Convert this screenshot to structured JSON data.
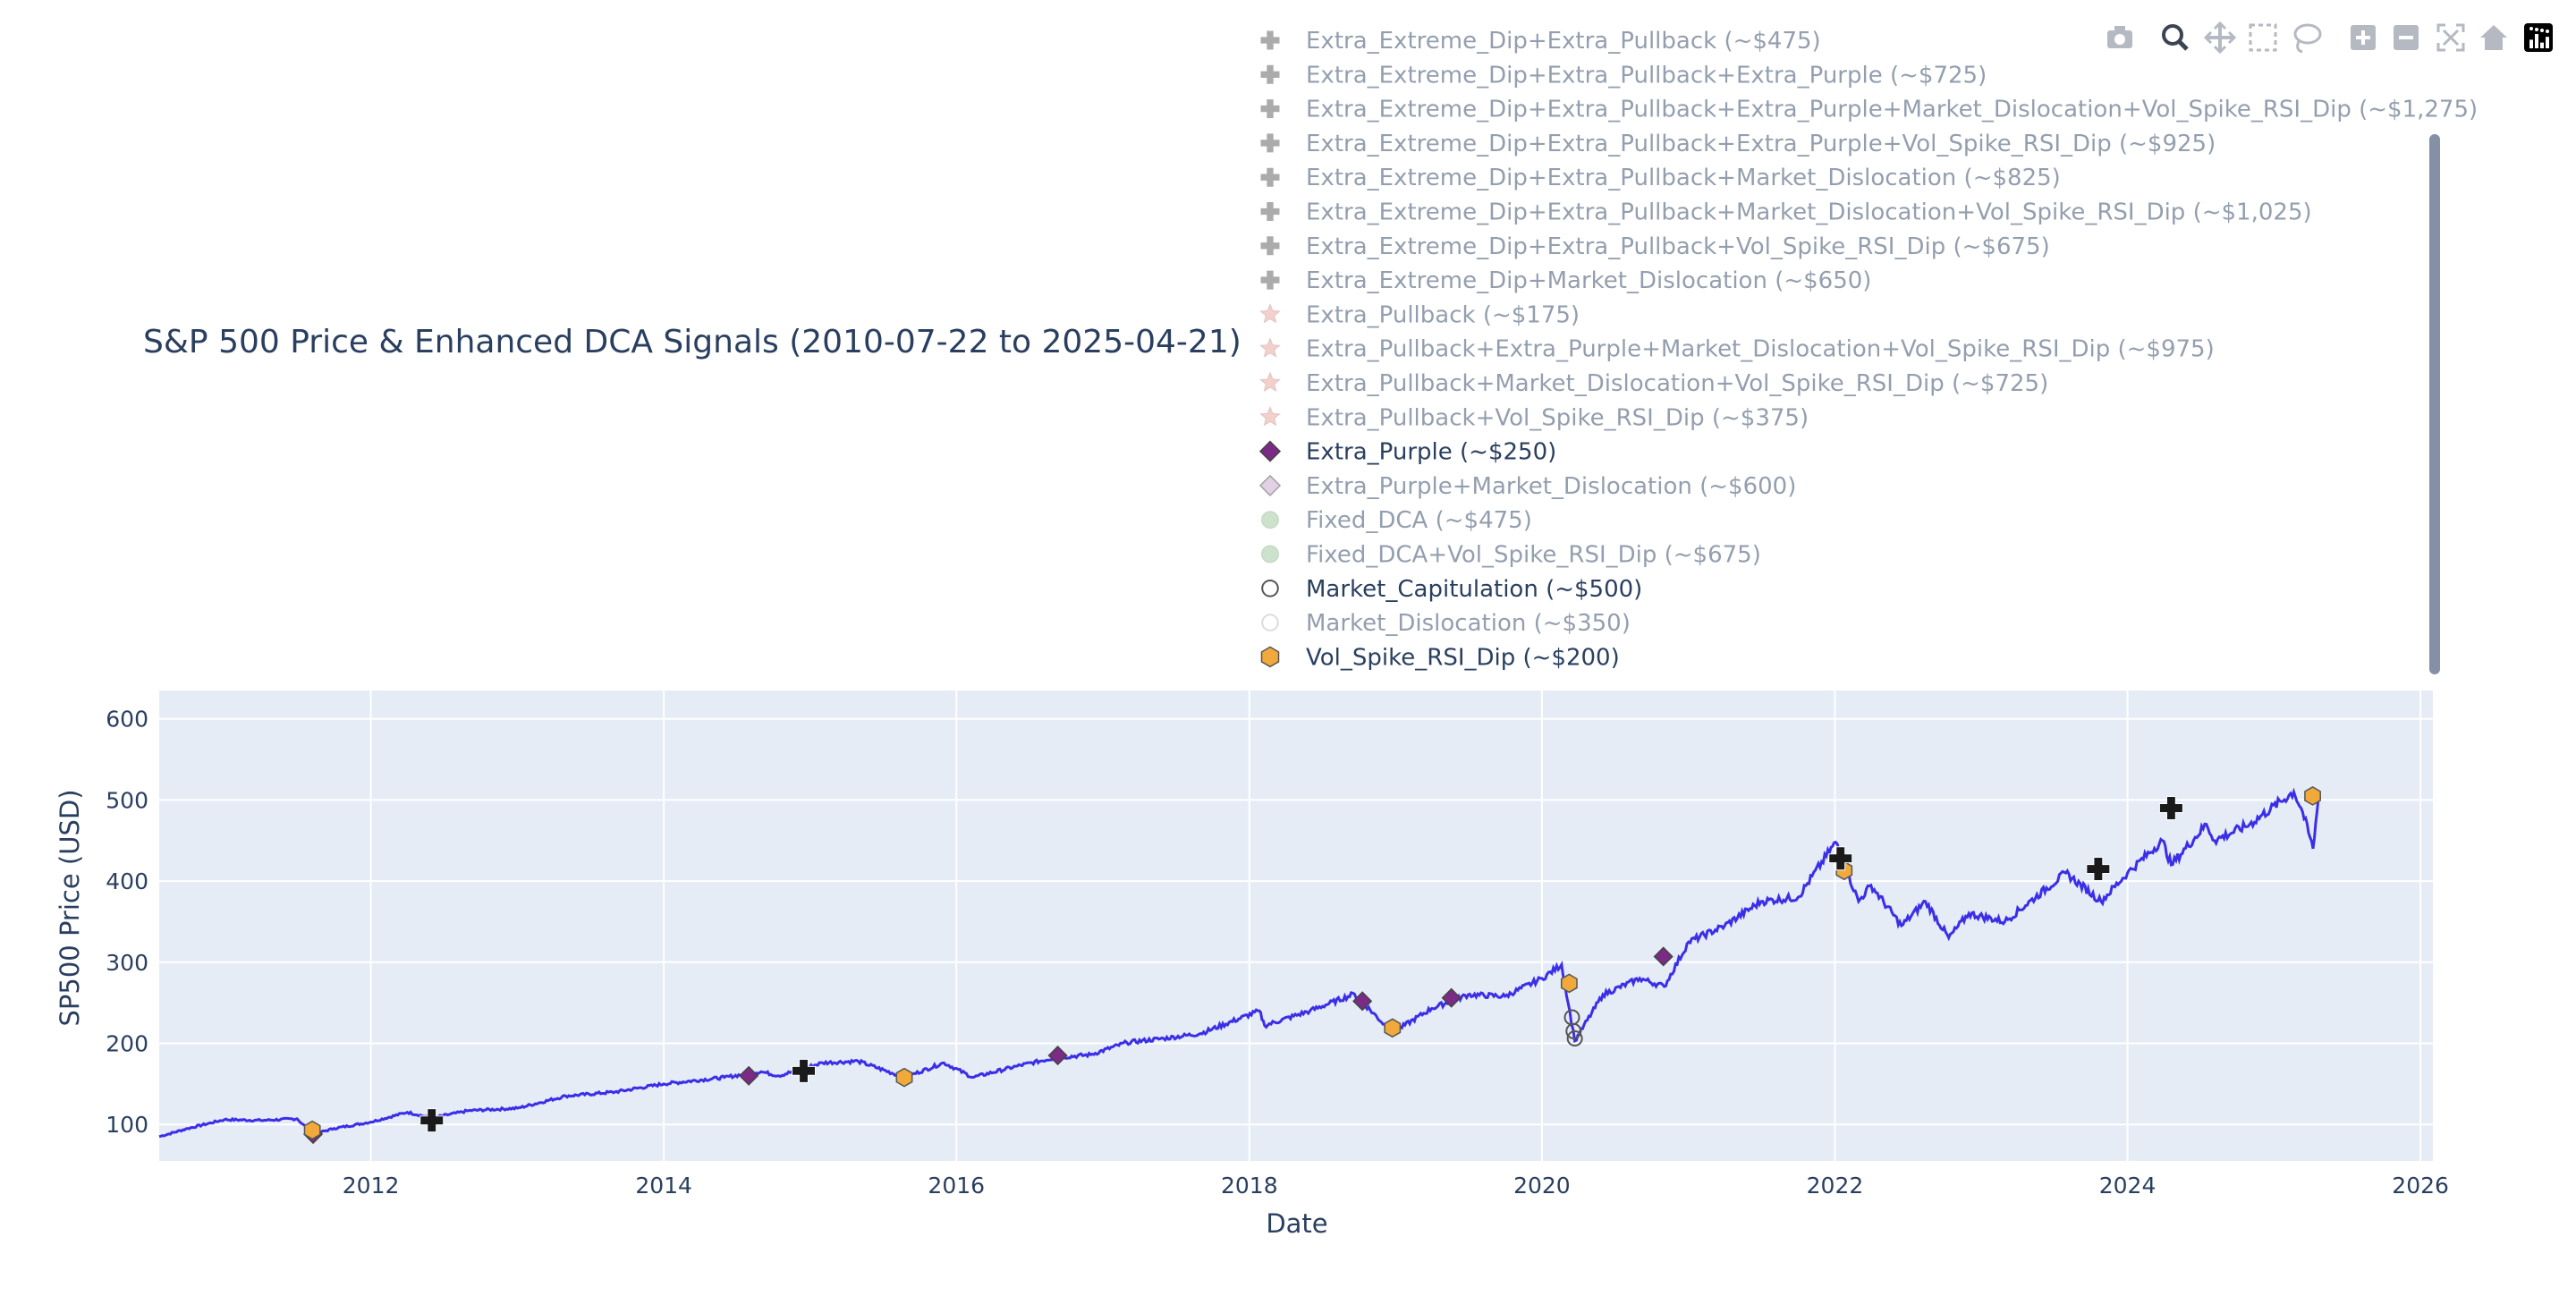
{
  "chart_data": {
    "type": "line",
    "title": "S&P 500 Price & Enhanced DCA Signals (2010-07-22 to 2025-04-21)",
    "xlabel": "Date",
    "ylabel": "SP500 Price (USD)",
    "xlim": [
      "2010-07-22",
      "2026-02-01"
    ],
    "ylim": [
      55,
      635
    ],
    "x_ticks": [
      "2012",
      "2014",
      "2016",
      "2018",
      "2020",
      "2022",
      "2024",
      "2026"
    ],
    "y_ticks": [
      100,
      200,
      300,
      400,
      500,
      600
    ],
    "grid": true,
    "legend_position": "top-right",
    "price_series": {
      "name": "",
      "x": [
        "2010-07-22",
        "2010-10-01",
        "2011-01-01",
        "2011-04-01",
        "2011-07-01",
        "2011-08-10",
        "2011-10-01",
        "2012-01-01",
        "2012-04-01",
        "2012-06-01",
        "2012-09-01",
        "2013-01-01",
        "2013-05-01",
        "2013-09-01",
        "2014-01-01",
        "2014-06-01",
        "2014-09-01",
        "2014-10-15",
        "2015-02-01",
        "2015-05-01",
        "2015-08-25",
        "2015-12-01",
        "2016-02-11",
        "2016-06-01",
        "2016-09-01",
        "2016-12-01",
        "2017-03-01",
        "2017-06-01",
        "2017-09-01",
        "2018-01-26",
        "2018-02-08",
        "2018-06-01",
        "2018-09-20",
        "2018-12-24",
        "2019-04-01",
        "2019-07-01",
        "2019-10-01",
        "2020-01-01",
        "2020-02-19",
        "2020-03-23",
        "2020-06-01",
        "2020-09-01",
        "2020-11-01",
        "2021-01-01",
        "2021-04-01",
        "2021-07-01",
        "2021-10-01",
        "2022-01-03",
        "2022-03-01",
        "2022-04-01",
        "2022-06-16",
        "2022-08-15",
        "2022-10-12",
        "2022-12-01",
        "2023-03-01",
        "2023-07-31",
        "2023-10-27",
        "2024-01-01",
        "2024-03-28",
        "2024-04-19",
        "2024-07-16",
        "2024-08-05",
        "2024-11-01",
        "2025-02-19",
        "2025-03-13",
        "2025-04-08",
        "2025-04-21"
      ],
      "y": [
        85,
        95,
        106,
        105,
        107,
        88,
        95,
        103,
        115,
        108,
        117,
        120,
        135,
        140,
        150,
        158,
        165,
        160,
        176,
        178,
        158,
        176,
        158,
        172,
        182,
        186,
        201,
        206,
        212,
        240,
        222,
        240,
        261,
        213,
        243,
        260,
        258,
        280,
        297,
        203,
        260,
        280,
        270,
        325,
        345,
        375,
        380,
        448,
        375,
        395,
        345,
        375,
        330,
        360,
        350,
        410,
        375,
        410,
        450,
        420,
        470,
        450,
        470,
        510,
        485,
        440,
        500
      ]
    },
    "signals": [
      {
        "name": "Extra_Extreme_Dip+Extra_Pullback (~$475)",
        "symbol": "cross",
        "color": "#5a5a5a",
        "points": []
      },
      {
        "name": "Extra_Extreme_Dip+Extra_Pullback+Extra_Purple (~$725)",
        "symbol": "cross",
        "color": "#5a5a5a",
        "points": []
      },
      {
        "name": "Extra_Extreme_Dip+Extra_Pullback+Extra_Purple+Market_Dislocation+Vol_Spike_RSI_Dip (~$1,275)",
        "symbol": "cross",
        "color": "#5a5a5a",
        "points": []
      },
      {
        "name": "Extra_Extreme_Dip+Extra_Pullback+Extra_Purple+Vol_Spike_RSI_Dip (~$925)",
        "symbol": "cross",
        "color": "#5a5a5a",
        "points": []
      },
      {
        "name": "Extra_Extreme_Dip+Extra_Pullback+Market_Dislocation (~$825)",
        "symbol": "cross",
        "color": "#5a5a5a",
        "points": []
      },
      {
        "name": "Extra_Extreme_Dip+Extra_Pullback+Market_Dislocation+Vol_Spike_RSI_Dip (~$1,025)",
        "symbol": "cross",
        "color": "#5a5a5a",
        "points": []
      },
      {
        "name": "Extra_Extreme_Dip+Extra_Pullback+Vol_Spike_RSI_Dip (~$675)",
        "symbol": "cross",
        "color": "#5a5a5a",
        "points": []
      },
      {
        "name": "Extra_Extreme_Dip+Market_Dislocation (~$650)",
        "symbol": "cross",
        "color": "#5a5a5a",
        "points": []
      },
      {
        "name": "Extra_Pullback (~$175)",
        "symbol": "star",
        "color": "#e8a39b",
        "points": []
      },
      {
        "name": "Extra_Pullback+Extra_Purple+Market_Dislocation+Vol_Spike_RSI_Dip (~$975)",
        "symbol": "star",
        "color": "#e8a39b",
        "points": []
      },
      {
        "name": "Extra_Pullback+Market_Dislocation+Vol_Spike_RSI_Dip (~$725)",
        "symbol": "star",
        "color": "#e8a39b",
        "points": []
      },
      {
        "name": "Extra_Pullback+Vol_Spike_RSI_Dip (~$375)",
        "symbol": "star",
        "color": "#e8a39b",
        "points": []
      },
      {
        "name": "Extra_Purple (~$250)",
        "symbol": "diamond",
        "color": "#7b2a86",
        "visible": true,
        "points": [
          {
            "x": "2011-08-10",
            "y": 88
          },
          {
            "x": "2014-08-01",
            "y": 160
          },
          {
            "x": "2016-09-10",
            "y": 185
          },
          {
            "x": "2018-10-10",
            "y": 252
          },
          {
            "x": "2019-05-20",
            "y": 256
          },
          {
            "x": "2020-10-30",
            "y": 307
          }
        ]
      },
      {
        "name": "Extra_Purple+Market_Dislocation (~$600)",
        "symbol": "diamond",
        "color": "#c9a2cf",
        "points": []
      },
      {
        "name": "Fixed_DCA (~$475)",
        "symbol": "circle",
        "color": "#9cc79a",
        "points": []
      },
      {
        "name": "Fixed_DCA+Vol_Spike_RSI_Dip (~$675)",
        "symbol": "circle",
        "color": "#9cc79a",
        "points": []
      },
      {
        "name": "Market_Capitulation (~$500)",
        "symbol": "circle-open",
        "color": "#555555",
        "visible": true,
        "points": [
          {
            "x": "2020-03-16",
            "y": 232
          },
          {
            "x": "2020-03-20",
            "y": 215
          },
          {
            "x": "2020-03-23",
            "y": 206
          }
        ]
      },
      {
        "name": "Market_Dislocation (~$350)",
        "symbol": "circle-open",
        "color": "#bbbbbb",
        "points": []
      },
      {
        "name": "Vol_Spike_RSI_Dip (~$200)",
        "symbol": "hexagon",
        "color": "#f0a93a",
        "visible": true,
        "points": [
          {
            "x": "2011-08-08",
            "y": 93
          },
          {
            "x": "2015-08-24",
            "y": 158
          },
          {
            "x": "2018-12-24",
            "y": 219
          },
          {
            "x": "2020-03-09",
            "y": 274
          },
          {
            "x": "2022-01-24",
            "y": 413
          },
          {
            "x": "2025-04-07",
            "y": 505
          }
        ]
      },
      {
        "name": "",
        "symbol": "cross",
        "color": "#1a1a1a",
        "visible": true,
        "points": [
          {
            "x": "2012-06-01",
            "y": 105
          },
          {
            "x": "2014-12-16",
            "y": 166
          },
          {
            "x": "2022-01-15",
            "y": 428
          },
          {
            "x": "2023-10-20",
            "y": 415
          },
          {
            "x": "2024-04-19",
            "y": 490
          }
        ]
      }
    ]
  },
  "modebar": {
    "icons": [
      "camera-icon",
      "zoom-icon",
      "pan-icon",
      "box-select-icon",
      "lasso-select-icon",
      "zoom-in-icon",
      "zoom-out-icon",
      "autoscale-icon",
      "reset-axes-icon",
      "plotly-logo-icon"
    ]
  }
}
